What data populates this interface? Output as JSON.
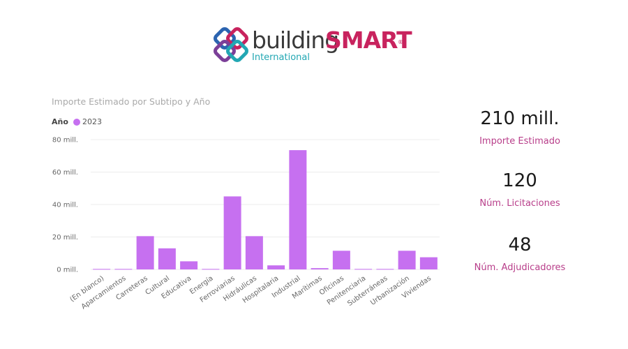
{
  "logo": {
    "word_building": "building",
    "word_smart": "SMART",
    "registered": "®",
    "subtitle": "International",
    "colors": [
      "#c8235e",
      "#22a7b3",
      "#7b3f98",
      "#2c64b0"
    ]
  },
  "kpis": [
    {
      "value": "210 mill.",
      "label": "Importe Estimado"
    },
    {
      "value": "120",
      "label": "Núm. Licitaciones"
    },
    {
      "value": "48",
      "label": "Núm. Adjudicadores"
    }
  ],
  "chart_data": {
    "type": "bar",
    "title": "Importe Estimado por Subtipo y Año",
    "legend_title": "Año",
    "legend_position": "top-left",
    "grid": true,
    "ylim": [
      0,
      80
    ],
    "yticks": [
      {
        "value": 0,
        "label": "0 mill."
      },
      {
        "value": 20,
        "label": "20 mill."
      },
      {
        "value": 40,
        "label": "40 mill."
      },
      {
        "value": 60,
        "label": "60 mill."
      },
      {
        "value": 80,
        "label": "80 mill."
      }
    ],
    "categories": [
      "(En blanco)",
      "Aparcamientos",
      "Carreteras",
      "Cultural",
      "Educativa",
      "Energía",
      "Ferroviarias",
      "Hidráulicas",
      "Hospitalaria",
      "Industrial",
      "Marítimas",
      "Oficinas",
      "Penitenciaria",
      "Subterráneas",
      "Urbanización",
      "Viviendas"
    ],
    "series": [
      {
        "name": "2023",
        "color": "#c670f0",
        "values": [
          0.3,
          0.3,
          20.5,
          13,
          5,
          0.3,
          45,
          20.5,
          2.5,
          73.5,
          0.8,
          11.5,
          0.3,
          0.3,
          11.5,
          7.5
        ]
      }
    ]
  }
}
